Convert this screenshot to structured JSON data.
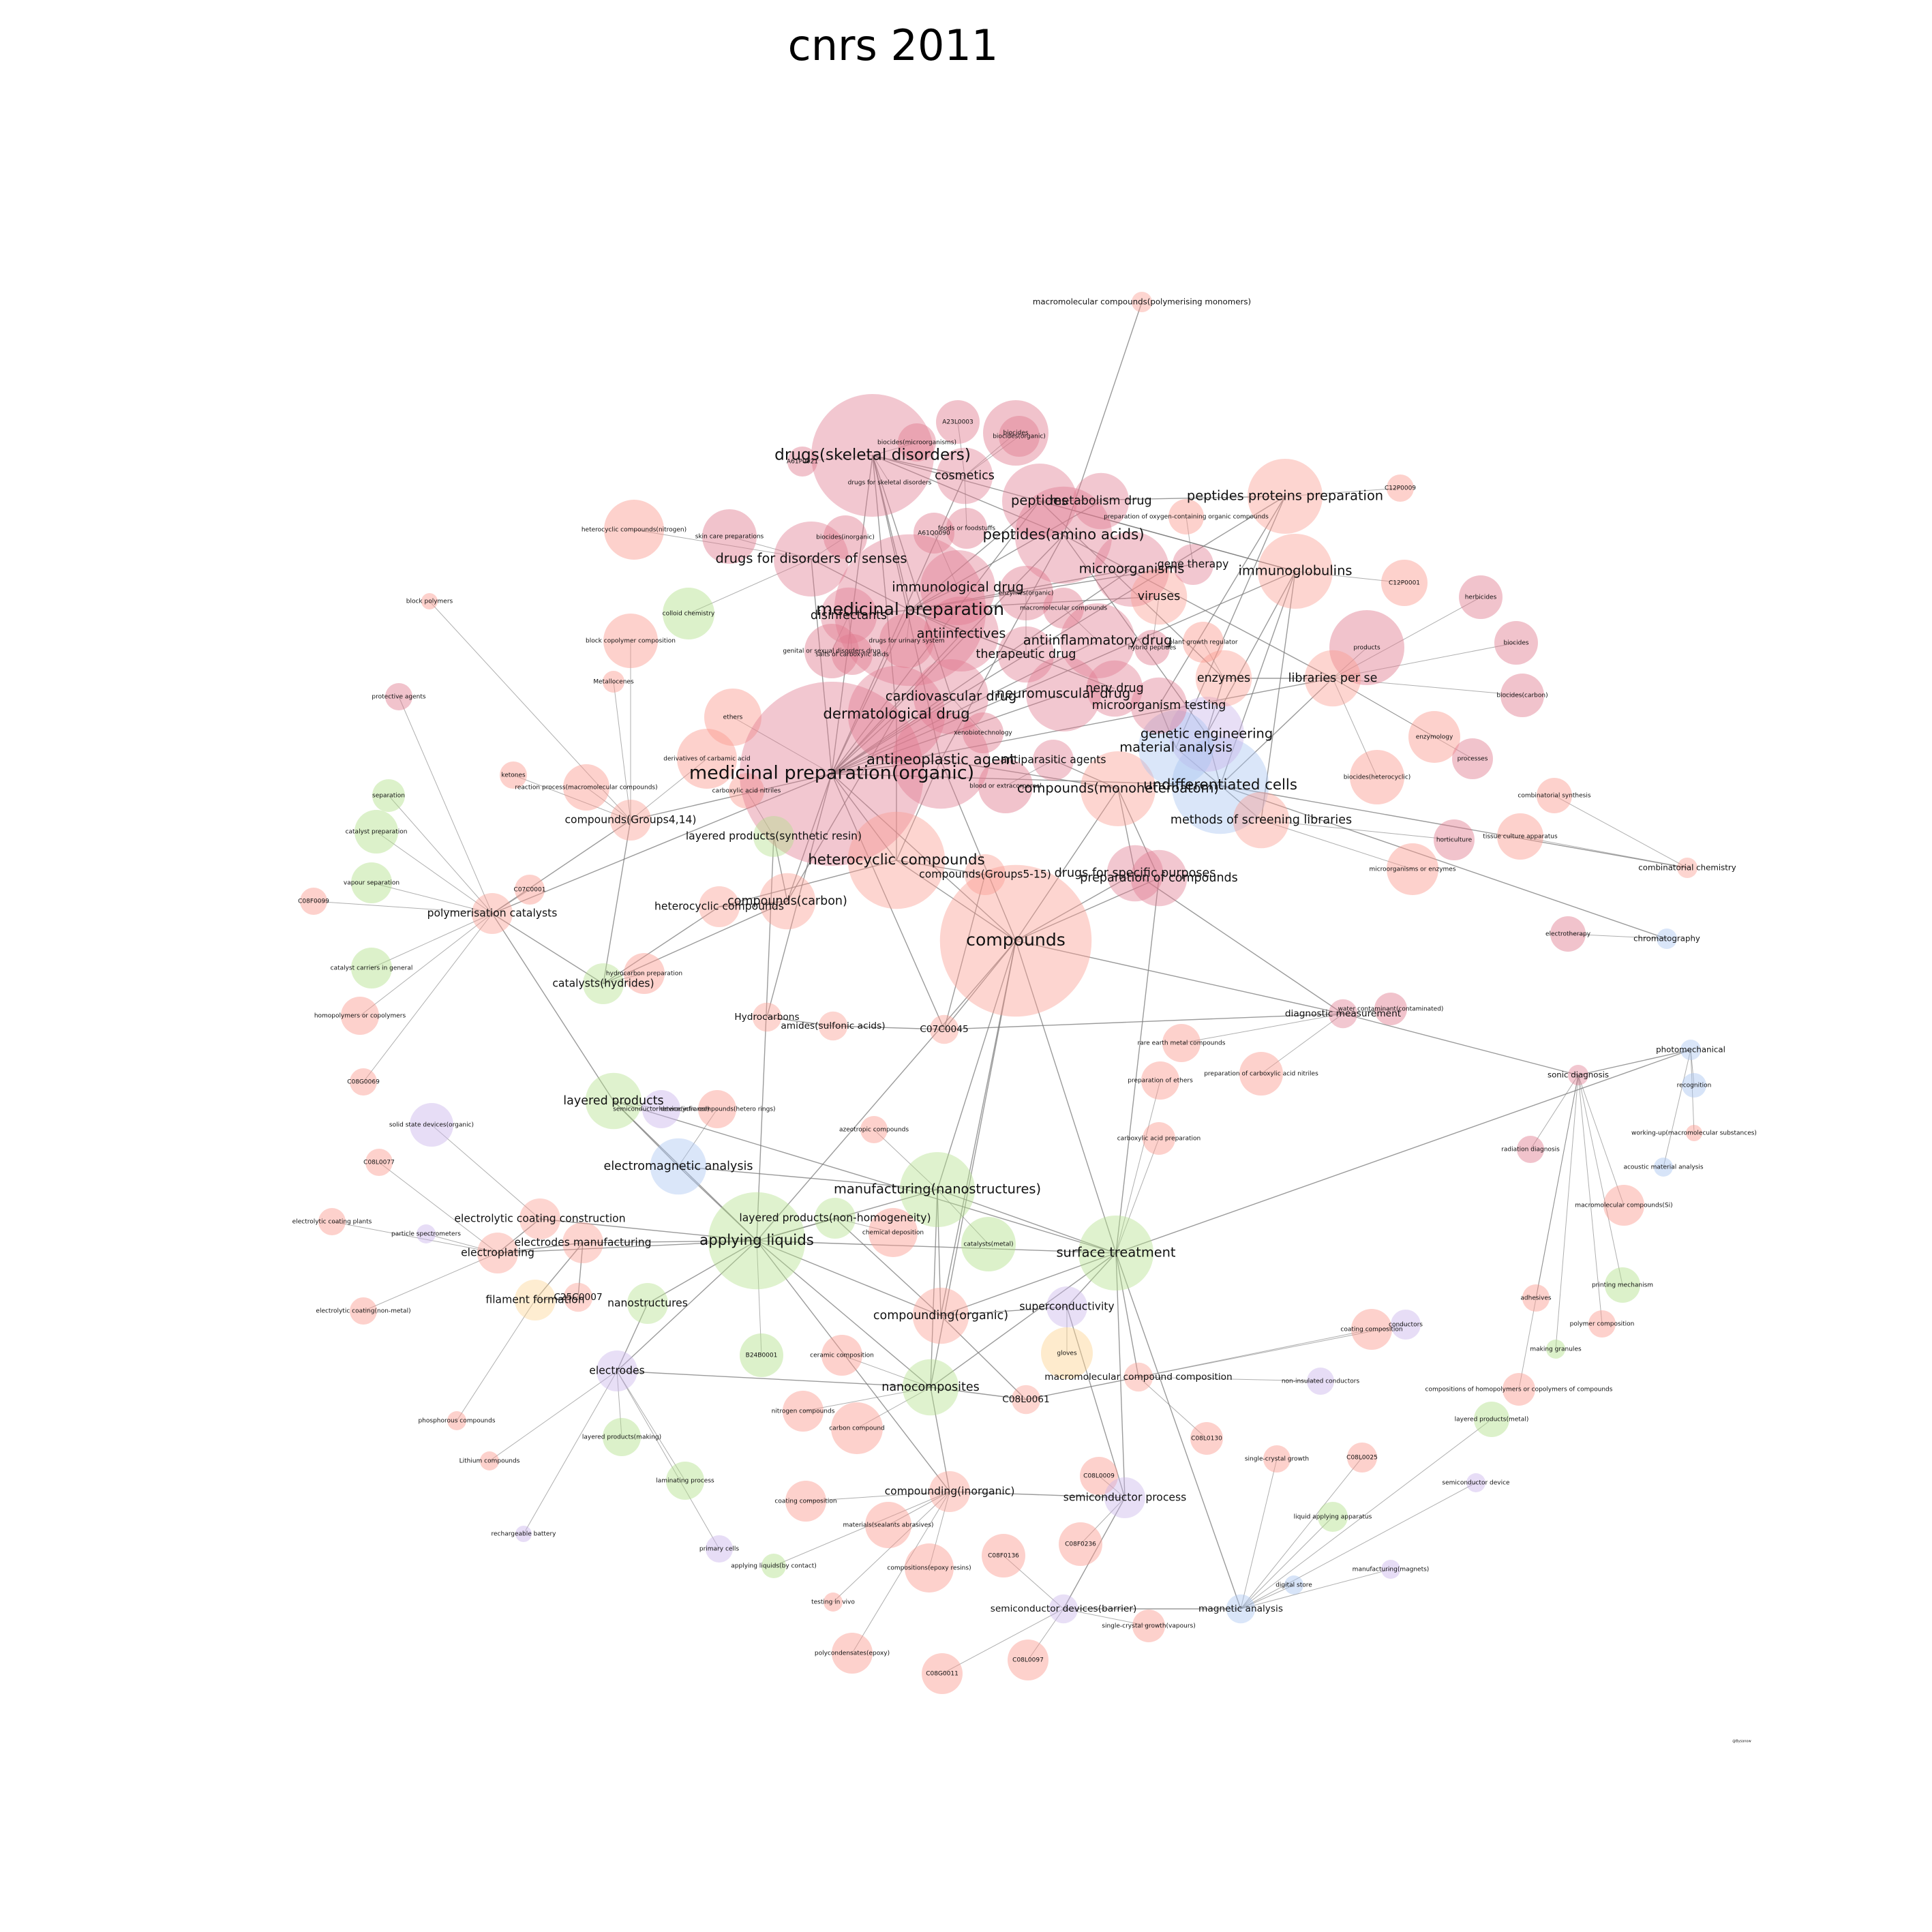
{
  "title": "cnrs 2011",
  "credit": "@Bysanow",
  "colors": {
    "pharma": "#e07a8e",
    "chemistry": "#fb9a8e",
    "process": "#b2df8a",
    "physics": "#a6c4f0",
    "electrical": "#c9b3ea",
    "mechanics": "#fdd391",
    "edge": "#7a7a7a",
    "background": "#ffffff"
  },
  "nodes": [
    {
      "id": "med_prep_org",
      "label": "medicinal preparation(organic)",
      "group": "pharma",
      "w": 10
    },
    {
      "id": "med_prep",
      "label": "medicinal preparation",
      "group": "pharma",
      "w": 9
    },
    {
      "id": "compounds",
      "label": "compounds",
      "group": "chemistry",
      "w": 9
    },
    {
      "id": "peptides",
      "label": "peptides",
      "group": "pharma",
      "w": 6
    },
    {
      "id": "peptides_aa",
      "label": "peptides(amino acids)",
      "group": "pharma",
      "w": 7
    },
    {
      "id": "antineoplastic",
      "label": "antineoplastic agent",
      "group": "pharma",
      "w": 7
    },
    {
      "id": "dermatological",
      "label": "dermatological drug",
      "group": "pharma",
      "w": 7
    },
    {
      "id": "heterocyclic",
      "label": "heterocyclic compounds",
      "group": "chemistry",
      "w": 7
    },
    {
      "id": "undiff",
      "label": "undifferentiated cells",
      "group": "physics",
      "w": 7
    },
    {
      "id": "drugs_skeletal",
      "label": "drugs(skeletal disorders)",
      "group": "pharma",
      "w": 8
    },
    {
      "id": "microorganisms",
      "label": "microorganisms",
      "group": "pharma",
      "w": 6
    },
    {
      "id": "immunoglobulins",
      "label": "immunoglobulins",
      "group": "chemistry",
      "w": 6
    },
    {
      "id": "antiinfectives",
      "label": "antiinfectives",
      "group": "pharma",
      "w": 6
    },
    {
      "id": "antiinflammatory",
      "label": "antiinflammatory drug",
      "group": "pharma",
      "w": 6
    },
    {
      "id": "immunological",
      "label": "immunological drug",
      "group": "pharma",
      "w": 6
    },
    {
      "id": "cardiovascular",
      "label": "cardiovascular drug",
      "group": "pharma",
      "w": 6
    },
    {
      "id": "neuromuscular",
      "label": "neuromuscular drug",
      "group": "pharma",
      "w": 6
    },
    {
      "id": "nerv_drug",
      "label": "nerv drug",
      "group": "pharma",
      "w": 5
    },
    {
      "id": "metabolism",
      "label": "metabolism drug",
      "group": "pharma",
      "w": 5
    },
    {
      "id": "therapeutic",
      "label": "therapeutic drug",
      "group": "pharma",
      "w": 5
    },
    {
      "id": "compounds_mono",
      "label": "compounds(monoheteroatom)",
      "group": "chemistry",
      "w": 6
    },
    {
      "id": "genetic_eng",
      "label": "genetic engineering",
      "group": "electrical",
      "w": 6
    },
    {
      "id": "material_analysis",
      "label": "material analysis",
      "group": "physics",
      "w": 6
    },
    {
      "id": "microorganism_testing",
      "label": "microorganism testing",
      "group": "pharma",
      "w": 5
    },
    {
      "id": "enzymes",
      "label": "enzymes",
      "group": "chemistry",
      "w": 5
    },
    {
      "id": "viruses",
      "label": "viruses",
      "group": "chemistry",
      "w": 5
    },
    {
      "id": "drugs_senses",
      "label": "drugs for disorders of senses",
      "group": "pharma",
      "w": 6
    },
    {
      "id": "disinfectants",
      "label": "disinfectants",
      "group": "pharma",
      "w": 5
    },
    {
      "id": "cosmetics",
      "label": "cosmetics",
      "group": "pharma",
      "w": 5
    },
    {
      "id": "peptides_prot_prep",
      "label": "peptides proteins preparation",
      "group": "chemistry",
      "w": 6
    },
    {
      "id": "gene_therapy",
      "label": "gene therapy",
      "group": "pharma",
      "w": 4
    },
    {
      "id": "libraries",
      "label": "libraries per se",
      "group": "chemistry",
      "w": 5
    },
    {
      "id": "methods_libraries",
      "label": "methods of screening libraries",
      "group": "chemistry",
      "w": 5
    },
    {
      "id": "antiparasitic",
      "label": "antiparasitic agents",
      "group": "pharma",
      "w": 4
    },
    {
      "id": "drugs_specific",
      "label": "drugs for specific purposes",
      "group": "pharma",
      "w": 5
    },
    {
      "id": "prep_compounds",
      "label": "preparation of compounds",
      "group": "pharma",
      "w": 5
    },
    {
      "id": "compounds_carbon",
      "label": "compounds(carbon)",
      "group": "chemistry",
      "w": 5
    },
    {
      "id": "heterocyclic2",
      "label": "heterocyclic compounds",
      "group": "chemistry",
      "w": 4
    },
    {
      "id": "compounds_groups5",
      "label": "compounds(Groups5-15)",
      "group": "chemistry",
      "w": 4
    },
    {
      "id": "layered_synth",
      "label": "layered products(synthetic resin)",
      "group": "process",
      "w": 4
    },
    {
      "id": "compounds_groups4",
      "label": "compounds(Groups4,14)",
      "group": "chemistry",
      "w": 4
    },
    {
      "id": "polymerisation_cat",
      "label": "polymerisation catalysts",
      "group": "chemistry",
      "w": 4
    },
    {
      "id": "catalysts_hydrides",
      "label": "catalysts(hydrides)",
      "group": "process",
      "w": 4
    },
    {
      "id": "hydrocarbons",
      "label": "Hydrocarbons",
      "group": "chemistry",
      "w": 3
    },
    {
      "id": "amides",
      "label": "amides(sulfonic acids)",
      "group": "chemistry",
      "w": 3
    },
    {
      "id": "c07c0045",
      "label": "C07C0045",
      "group": "chemistry",
      "w": 3
    },
    {
      "id": "diagnostic",
      "label": "diagnostic measurement",
      "group": "pharma",
      "w": 3
    },
    {
      "id": "layered_products",
      "label": "layered products",
      "group": "process",
      "w": 5
    },
    {
      "id": "electromagnetic",
      "label": "electromagnetic analysis",
      "group": "physics",
      "w": 5
    },
    {
      "id": "manufacturing_nano",
      "label": "manufacturing(nanostructures)",
      "group": "process",
      "w": 6
    },
    {
      "id": "applying_liquids",
      "label": "applying liquids",
      "group": "process",
      "w": 7
    },
    {
      "id": "surface_treatment",
      "label": "surface treatment",
      "group": "process",
      "w": 6
    },
    {
      "id": "layered_nonhomo",
      "label": "layered products(non-homogeneity)",
      "group": "process",
      "w": 4
    },
    {
      "id": "electroplating",
      "label": "electroplating",
      "group": "chemistry",
      "w": 4
    },
    {
      "id": "electrolytic_constr",
      "label": "electrolytic coating construction",
      "group": "chemistry",
      "w": 4
    },
    {
      "id": "electrodes_manuf",
      "label": "electrodes manufacturing",
      "group": "chemistry",
      "w": 4
    },
    {
      "id": "filament",
      "label": "filament formation",
      "group": "mechanics",
      "w": 4
    },
    {
      "id": "c25c0007",
      "label": "C25C0007",
      "group": "chemistry",
      "w": 3
    },
    {
      "id": "nanostructures",
      "label": "nanostructures",
      "group": "process",
      "w": 4
    },
    {
      "id": "compounding_org",
      "label": "compounding(organic)",
      "group": "chemistry",
      "w": 5
    },
    {
      "id": "superconductivity",
      "label": "superconductivity",
      "group": "electrical",
      "w": 4
    },
    {
      "id": "electrodes",
      "label": "electrodes",
      "group": "electrical",
      "w": 4
    },
    {
      "id": "nanocomposites",
      "label": "nanocomposites",
      "group": "process",
      "w": 5
    },
    {
      "id": "compounding_inorg",
      "label": "compounding(inorganic)",
      "group": "chemistry",
      "w": 4
    },
    {
      "id": "semiconductor_process",
      "label": "semiconductor process",
      "group": "electrical",
      "w": 4
    },
    {
      "id": "macromolecular_comp",
      "label": "macromolecular compound composition",
      "group": "chemistry",
      "w": 3
    },
    {
      "id": "c08l0061",
      "label": "C08L0061",
      "group": "chemistry",
      "w": 3
    },
    {
      "id": "semiconductor_barrier",
      "label": "semiconductor devices(barrier)",
      "group": "electrical",
      "w": 3
    },
    {
      "id": "magnetic_analysis",
      "label": "magnetic analysis",
      "group": "physics",
      "w": 3
    },
    {
      "id": "photomechanical",
      "label": "photomechanical",
      "group": "physics",
      "w": 2
    },
    {
      "id": "sonic_diagnosis",
      "label": "sonic diagnosis",
      "group": "pharma",
      "w": 2
    },
    {
      "id": "combinatorial",
      "label": "combinatorial chemistry",
      "group": "chemistry",
      "w": 2
    },
    {
      "id": "chromatography",
      "label": "chromatography",
      "group": "physics",
      "w": 2
    },
    {
      "id": "macromolecular_poly",
      "label": "macromolecular compounds(polymerising monomers)",
      "group": "chemistry",
      "w": 2
    }
  ],
  "extra_labels": [
    "A23L0003",
    "biocides(microorganisms)",
    "biocides(organic)",
    "A61P0021",
    "drugs for skeletal disorders",
    "heterocyclic compounds(nitrogen)",
    "skin care preparations",
    "biocides(inorganic)",
    "A61Q0090",
    "foods or foodstuffs",
    "preparation of oxygen-containing organic compounds",
    "C12P0009",
    "C12P0001",
    "herbicides",
    "biocides",
    "biocides(carbon)",
    "products",
    "plant growth regulator",
    "colloid chemistry",
    "block polymers",
    "block copolymer composition",
    "Metallocenes",
    "protective agents",
    "ethers",
    "derivatives of carbamic acid",
    "carboxylic acid nitriles",
    "ketones",
    "reaction process(macromolecular compounds)",
    "separation",
    "catalyst preparation",
    "vapour separation",
    "C08F0099",
    "C07C0001",
    "catalyst carriers in general",
    "homopolymers or copolymers",
    "hydrocarbon preparation",
    "enzymology",
    "processes",
    "biocides(heterocyclic)",
    "combinatorial synthesis",
    "horticulture",
    "tissue culture apparatus",
    "microorganisms or enzymes",
    "electrotherapy",
    "water contaminant(contaminated)",
    "rare earth metal compounds",
    "preparation of carboxylic acid nitriles",
    "preparation of ethers",
    "carboxylic acid preparation",
    "C08G0069",
    "C08L0077",
    "solid state devices(organic)",
    "semiconductor device(infrared)",
    "heterocyclic compounds(hetero rings)",
    "azeotropic compounds",
    "radiation diagnosis",
    "working-up(macromolecular substances)",
    "acoustic material analysis",
    "recognition",
    "macromolecular compounds(Si)",
    "printing mechanism",
    "electrolytic coating plants",
    "particle spectrometers",
    "chemical deposition",
    "catalysts(metal)",
    "electrolytic coating(non-metal)",
    "adhesives",
    "polymer composition",
    "coating composition",
    "conductors",
    "making granules",
    "compositions of homopolymers or copolymers of compounds",
    "layered products(metal)",
    "non-insulated conductors",
    "B24B0001",
    "ceramic composition",
    "nitrogen compounds",
    "carbon compound",
    "phosphorous compounds",
    "Lithium compounds",
    "layered products(making)",
    "laminating process",
    "primary cells",
    "applying liquids(by contact)",
    "rechargeable battery",
    "coating composition",
    "materials(sealants abrasives)",
    "compositions(epoxy resins)",
    "C08F0136",
    "C08F0236",
    "C08L0130",
    "C08L0009",
    "C08L0025",
    "single-crystal growth",
    "single-crystal growth(vapours)",
    "semiconductor device",
    "liquid applying apparatus",
    "digital store",
    "manufacturing(magnets)",
    "testing in vivo",
    "polycondensates(epoxy)",
    "C08G0011",
    "C08L0097",
    "gloves",
    "enzymes(organic)",
    "macromolecular compounds",
    "genital or sexual disorders drug",
    "drugs for urinary system",
    "salts of carboxylic acids",
    "hybrid peptides",
    "xenobiotechnology",
    "blood or extracorporeal",
    "biocides"
  ]
}
